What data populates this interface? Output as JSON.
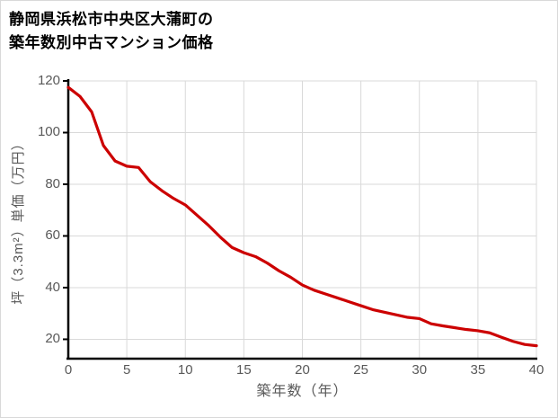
{
  "figure": {
    "background": "#ffffff",
    "border_color": "#d9d9d9"
  },
  "chart_data": {
    "type": "line",
    "title_lines": [
      "静岡県浜松市中央区大蒲町の",
      "築年数別中古マンション価格"
    ],
    "xlabel": "築年数（年）",
    "ylabel": "坪（3.3m²）単価（万円）",
    "x": [
      0,
      1,
      2,
      3,
      4,
      5,
      6,
      7,
      8,
      9,
      10,
      11,
      12,
      13,
      14,
      15,
      16,
      17,
      18,
      19,
      20,
      21,
      22,
      23,
      24,
      25,
      26,
      27,
      28,
      29,
      30,
      31,
      32,
      33,
      34,
      35,
      36,
      37,
      38,
      39,
      40
    ],
    "series": [
      {
        "name": "築年数別中古マンション価格",
        "values": [
          117.5,
          114,
          108,
          95,
          89,
          87,
          86.5,
          81,
          77.5,
          74.5,
          72,
          68,
          64,
          59.5,
          55.5,
          53.5,
          52,
          49.5,
          46.5,
          44,
          41,
          39,
          37.5,
          36,
          34.5,
          33,
          31.5,
          30.5,
          29.5,
          28.5,
          28,
          26,
          25.2,
          24.5,
          23.8,
          23.3,
          22.5,
          20.8,
          19.2,
          18,
          17.5
        ]
      }
    ],
    "xticks": [
      0,
      5,
      10,
      15,
      20,
      25,
      30,
      35,
      40
    ],
    "yticks": [
      20,
      40,
      60,
      80,
      100,
      120
    ],
    "xlim": [
      0,
      40
    ],
    "ylim": [
      12.5,
      120
    ],
    "grid": true,
    "legend_position": "none",
    "line_color": "#cc0000",
    "grid_color": "#d9d9d9",
    "axis_color": "#000000",
    "tick_label_color": "#595959"
  }
}
